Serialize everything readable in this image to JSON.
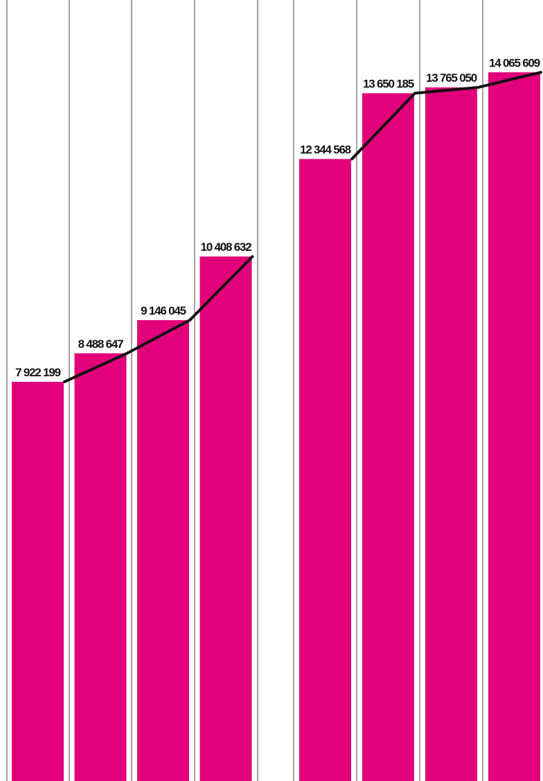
{
  "chart_data": {
    "type": "bar",
    "values": [
      7922199,
      8488647,
      9146045,
      10408632,
      12344568,
      13650185,
      13765050,
      14065609
    ],
    "value_labels": [
      "7 922 199",
      "8 488 647",
      "9 146 045",
      "10 408 632",
      "12 344 568",
      "13 650 185",
      "13 765 050",
      "14 065 609"
    ],
    "color": "#e2007a",
    "ylim": [
      0,
      15500000
    ]
  }
}
